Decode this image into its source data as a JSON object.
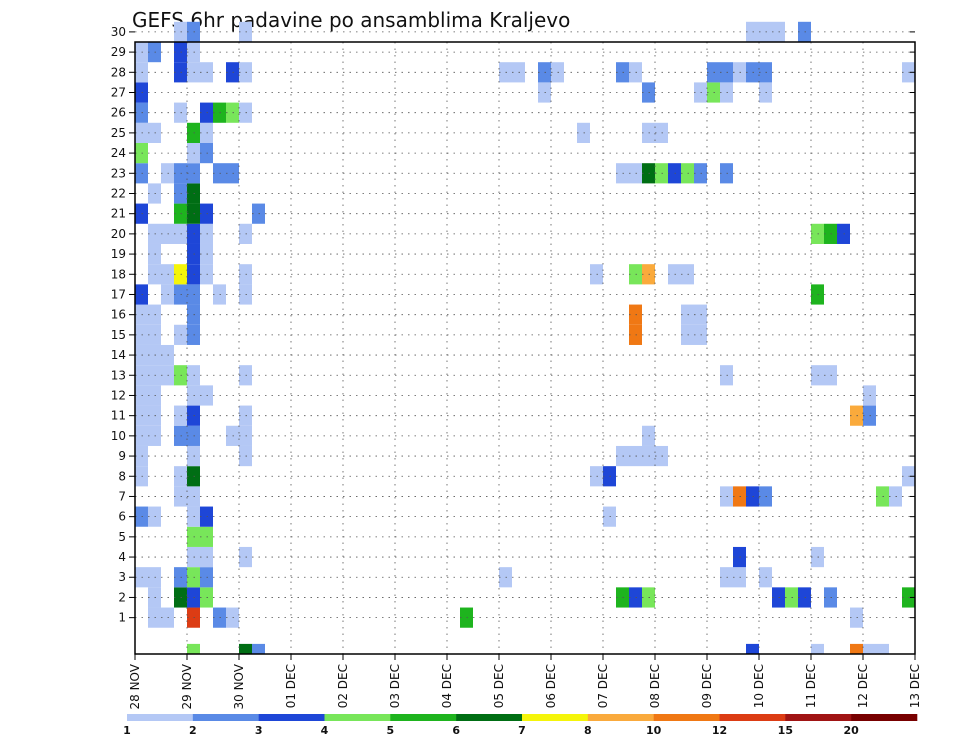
{
  "chart_data": {
    "type": "heatmap",
    "title": "GEFS 6hr padavine po ansamblima Kraljevo",
    "xlabel": "",
    "ylabel": "",
    "x_tick_labels": [
      "28 NOV",
      "29 NOV",
      "30 NOV",
      "01 DEC",
      "02 DEC",
      "03 DEC",
      "04 DEC",
      "05 DEC",
      "06 DEC",
      "07 DEC",
      "08 DEC",
      "09 DEC",
      "10 DEC",
      "11 DEC",
      "12 DEC",
      "13 DEC"
    ],
    "y_tick_labels": [
      "1",
      "2",
      "3",
      "4",
      "5",
      "6",
      "7",
      "8",
      "9",
      "10",
      "11",
      "12",
      "13",
      "14",
      "15",
      "16",
      "17",
      "18",
      "19",
      "20",
      "21",
      "22",
      "23",
      "24",
      "25",
      "26",
      "27",
      "28",
      "29",
      "30"
    ],
    "xlim": [
      0,
      60
    ],
    "ylim": [
      0,
      30
    ],
    "grid": true,
    "colorbar": {
      "boundaries": [
        "1",
        "2",
        "3",
        "4",
        "5",
        "6",
        "7",
        "8",
        "10",
        "12",
        "15",
        "20"
      ],
      "colors": [
        "#b4c8f5",
        "#5a8ae6",
        "#1e46d7",
        "#78e65a",
        "#1eb41e",
        "#006e14",
        "#f5f50a",
        "#faaa3c",
        "#f07814",
        "#dc3c14",
        "#a01414",
        "#780000"
      ]
    },
    "members": [
      {
        "member": 1,
        "cells": [
          [
            1,
            2,
            1
          ],
          [
            2,
            3,
            1
          ],
          [
            3,
            2,
            1
          ],
          [
            4,
            4,
            3
          ],
          [
            4,
            5,
            10
          ],
          [
            6,
            7,
            2
          ],
          [
            7,
            8,
            1
          ],
          [
            25,
            26,
            5
          ],
          [
            55,
            56,
            1
          ]
        ]
      },
      {
        "member": 2,
        "cells": [
          [
            1,
            2,
            1
          ],
          [
            3,
            4,
            6
          ],
          [
            4,
            5,
            3
          ],
          [
            5,
            6,
            4
          ],
          [
            37,
            38,
            5
          ],
          [
            38,
            39,
            3
          ],
          [
            39,
            40,
            4
          ],
          [
            49,
            50,
            3
          ],
          [
            50,
            51,
            4
          ],
          [
            51,
            52,
            3
          ],
          [
            53,
            54,
            2
          ],
          [
            59,
            60,
            5
          ]
        ]
      },
      {
        "member": 3,
        "cells": [
          [
            0,
            2,
            1
          ],
          [
            3,
            4,
            2
          ],
          [
            4,
            5,
            4
          ],
          [
            5,
            6,
            2
          ],
          [
            28,
            29,
            1
          ],
          [
            45,
            47,
            1
          ],
          [
            48,
            49,
            1
          ]
        ]
      },
      {
        "member": 4,
        "cells": [
          [
            4,
            6,
            1
          ],
          [
            8,
            9,
            1
          ],
          [
            46,
            47,
            3
          ],
          [
            52,
            53,
            1
          ]
        ]
      },
      {
        "member": 5,
        "cells": [
          [
            4,
            6,
            4
          ]
        ]
      },
      {
        "member": 6,
        "cells": [
          [
            0,
            1,
            2
          ],
          [
            1,
            2,
            1
          ],
          [
            4,
            5,
            1
          ],
          [
            5,
            6,
            3
          ],
          [
            36,
            37,
            1
          ]
        ]
      },
      {
        "member": 7,
        "cells": [
          [
            3,
            5,
            1
          ],
          [
            45,
            46,
            1
          ],
          [
            46,
            47,
            9
          ],
          [
            47,
            48,
            3
          ],
          [
            48,
            49,
            2
          ],
          [
            57,
            58,
            4
          ],
          [
            58,
            59,
            1
          ]
        ]
      },
      {
        "member": 8,
        "cells": [
          [
            0,
            1,
            1
          ],
          [
            3,
            4,
            1
          ],
          [
            4,
            5,
            6
          ],
          [
            35,
            36,
            1
          ],
          [
            36,
            37,
            3
          ],
          [
            59,
            60,
            1
          ]
        ]
      },
      {
        "member": 9,
        "cells": [
          [
            0,
            1,
            1
          ],
          [
            4,
            5,
            1
          ],
          [
            8,
            9,
            1
          ],
          [
            37,
            41,
            1
          ]
        ]
      },
      {
        "member": 10,
        "cells": [
          [
            0,
            2,
            1
          ],
          [
            3,
            5,
            2
          ],
          [
            7,
            9,
            1
          ],
          [
            39,
            40,
            1
          ]
        ]
      },
      {
        "member": 11,
        "cells": [
          [
            0,
            2,
            1
          ],
          [
            3,
            4,
            1
          ],
          [
            4,
            5,
            3
          ],
          [
            8,
            9,
            1
          ],
          [
            55,
            56,
            8
          ],
          [
            56,
            57,
            2
          ]
        ]
      },
      {
        "member": 12,
        "cells": [
          [
            0,
            2,
            1
          ],
          [
            4,
            6,
            1
          ],
          [
            56,
            57,
            1
          ]
        ]
      },
      {
        "member": 13,
        "cells": [
          [
            0,
            3,
            1
          ],
          [
            3,
            4,
            4
          ],
          [
            4,
            5,
            1
          ],
          [
            8,
            9,
            1
          ],
          [
            45,
            46,
            1
          ],
          [
            52,
            54,
            1
          ]
        ]
      },
      {
        "member": 14,
        "cells": [
          [
            0,
            3,
            1
          ]
        ]
      },
      {
        "member": 15,
        "cells": [
          [
            0,
            2,
            1
          ],
          [
            3,
            4,
            1
          ],
          [
            4,
            5,
            2
          ],
          [
            38,
            39,
            9
          ],
          [
            42,
            44,
            1
          ]
        ]
      },
      {
        "member": 16,
        "cells": [
          [
            0,
            2,
            1
          ],
          [
            4,
            5,
            2
          ],
          [
            38,
            39,
            9
          ],
          [
            42,
            44,
            1
          ]
        ]
      },
      {
        "member": 17,
        "cells": [
          [
            0,
            1,
            3
          ],
          [
            2,
            3,
            1
          ],
          [
            3,
            5,
            2
          ],
          [
            6,
            7,
            1
          ],
          [
            8,
            9,
            1
          ],
          [
            52,
            53,
            5
          ]
        ]
      },
      {
        "member": 18,
        "cells": [
          [
            1,
            3,
            1
          ],
          [
            3,
            4,
            7
          ],
          [
            4,
            5,
            3
          ],
          [
            5,
            6,
            1
          ],
          [
            8,
            9,
            1
          ],
          [
            35,
            36,
            1
          ],
          [
            38,
            39,
            4
          ],
          [
            39,
            40,
            8
          ],
          [
            41,
            43,
            1
          ]
        ]
      },
      {
        "member": 19,
        "cells": [
          [
            1,
            2,
            1
          ],
          [
            4,
            5,
            3
          ],
          [
            5,
            6,
            1
          ]
        ]
      },
      {
        "member": 20,
        "cells": [
          [
            1,
            4,
            1
          ],
          [
            4,
            5,
            3
          ],
          [
            5,
            6,
            1
          ],
          [
            8,
            9,
            1
          ],
          [
            52,
            53,
            4
          ],
          [
            53,
            54,
            5
          ],
          [
            54,
            55,
            3
          ]
        ]
      },
      {
        "member": 21,
        "cells": [
          [
            0,
            1,
            3
          ],
          [
            3,
            4,
            5
          ],
          [
            4,
            5,
            6
          ],
          [
            5,
            6,
            3
          ],
          [
            9,
            10,
            2
          ]
        ]
      },
      {
        "member": 22,
        "cells": [
          [
            1,
            2,
            1
          ],
          [
            3,
            4,
            2
          ],
          [
            4,
            5,
            6
          ]
        ]
      },
      {
        "member": 23,
        "cells": [
          [
            0,
            1,
            2
          ],
          [
            2,
            3,
            1
          ],
          [
            3,
            5,
            2
          ],
          [
            6,
            8,
            2
          ],
          [
            37,
            39,
            1
          ],
          [
            39,
            40,
            6
          ],
          [
            40,
            41,
            4
          ],
          [
            41,
            42,
            3
          ],
          [
            42,
            43,
            4
          ],
          [
            43,
            44,
            2
          ],
          [
            45,
            46,
            2
          ]
        ]
      },
      {
        "member": 24,
        "cells": [
          [
            0,
            1,
            4
          ],
          [
            4,
            5,
            1
          ],
          [
            5,
            6,
            2
          ]
        ]
      },
      {
        "member": 25,
        "cells": [
          [
            0,
            2,
            1
          ],
          [
            4,
            5,
            5
          ],
          [
            5,
            6,
            1
          ],
          [
            34,
            35,
            1
          ],
          [
            39,
            41,
            1
          ]
        ]
      },
      {
        "member": 26,
        "cells": [
          [
            0,
            1,
            2
          ],
          [
            3,
            4,
            1
          ],
          [
            5,
            6,
            3
          ],
          [
            6,
            7,
            5
          ],
          [
            7,
            8,
            4
          ],
          [
            8,
            9,
            1
          ]
        ]
      },
      {
        "member": 27,
        "cells": [
          [
            0,
            1,
            3
          ],
          [
            31,
            32,
            1
          ],
          [
            39,
            40,
            2
          ],
          [
            43,
            44,
            1
          ],
          [
            44,
            45,
            4
          ],
          [
            45,
            46,
            1
          ],
          [
            48,
            49,
            1
          ]
        ]
      },
      {
        "member": 28,
        "cells": [
          [
            0,
            1,
            1
          ],
          [
            3,
            4,
            3
          ],
          [
            4,
            5,
            1
          ],
          [
            5,
            6,
            1
          ],
          [
            7,
            8,
            3
          ],
          [
            8,
            9,
            1
          ],
          [
            28,
            30,
            1
          ],
          [
            31,
            32,
            2
          ],
          [
            32,
            33,
            1
          ],
          [
            37,
            38,
            2
          ],
          [
            38,
            39,
            1
          ],
          [
            44,
            46,
            2
          ],
          [
            46,
            47,
            1
          ],
          [
            47,
            49,
            2
          ],
          [
            59,
            60,
            1
          ]
        ]
      },
      {
        "member": 29,
        "cells": [
          [
            0,
            1,
            1
          ],
          [
            1,
            2,
            2
          ],
          [
            3,
            4,
            3
          ],
          [
            4,
            5,
            1
          ]
        ]
      },
      {
        "member": 30,
        "cells": [
          [
            3,
            4,
            1
          ],
          [
            4,
            5,
            2
          ],
          [
            8,
            9,
            1
          ],
          [
            47,
            50,
            1
          ],
          [
            51,
            52,
            2
          ]
        ]
      },
      {
        "member": 0,
        "cells": [
          [
            4,
            5,
            4
          ],
          [
            8,
            9,
            6
          ],
          [
            9,
            10,
            2
          ],
          [
            47,
            48,
            3
          ],
          [
            52,
            53,
            1
          ],
          [
            55,
            56,
            9
          ],
          [
            56,
            58,
            1
          ]
        ]
      }
    ]
  }
}
